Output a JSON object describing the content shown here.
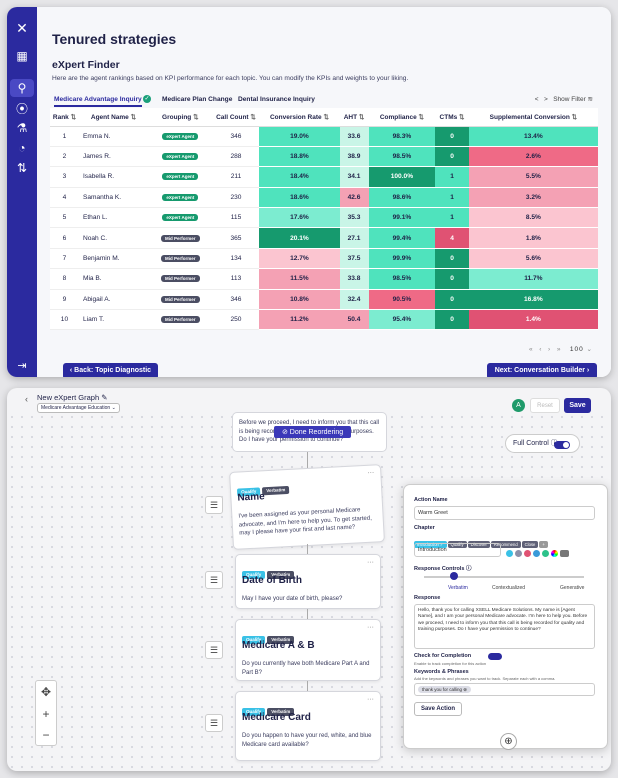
{
  "top": {
    "title": "Tenured strategies",
    "finder_title": "eXpert Finder",
    "description": "Here are the agent rankings based on KPI performance for each topic. You can modify the KPIs and weights to your liking.",
    "tabs": [
      "Medicare Advantage Inquiry",
      "Medicare Plan Change",
      "Dental Insurance Inquiry"
    ],
    "show_filter": "Show Filter",
    "columns": [
      "Rank",
      "Agent Name",
      "Grouping",
      "Call Count",
      "Conversion Rate",
      "AHT",
      "Compliance",
      "CTMs",
      "Supplemental Conversion"
    ],
    "rows": [
      [
        "1",
        "Emma N.",
        "eXpert Agent",
        "346",
        "19.0%",
        "33.6",
        "98.3%",
        "0",
        "13.4%"
      ],
      [
        "2",
        "James R.",
        "eXpert Agent",
        "288",
        "18.8%",
        "38.9",
        "98.5%",
        "0",
        "2.6%"
      ],
      [
        "3",
        "Isabella R.",
        "eXpert Agent",
        "211",
        "18.4%",
        "34.1",
        "100.0%",
        "1",
        "5.5%"
      ],
      [
        "4",
        "Samantha K.",
        "eXpert Agent",
        "230",
        "18.6%",
        "42.6",
        "98.6%",
        "1",
        "3.2%"
      ],
      [
        "5",
        "Ethan L.",
        "eXpert Agent",
        "115",
        "17.6%",
        "35.3",
        "99.1%",
        "1",
        "8.5%"
      ],
      [
        "6",
        "Noah C.",
        "Mid Performer",
        "365",
        "20.1%",
        "27.1",
        "99.4%",
        "4",
        "1.8%"
      ],
      [
        "7",
        "Benjamin M.",
        "Mid Performer",
        "134",
        "12.7%",
        "37.5",
        "99.9%",
        "0",
        "5.6%"
      ],
      [
        "8",
        "Mia B.",
        "Mid Performer",
        "113",
        "11.5%",
        "33.8",
        "98.5%",
        "0",
        "11.7%"
      ],
      [
        "9",
        "Abigail A.",
        "Mid Performer",
        "346",
        "10.8%",
        "32.4",
        "90.5%",
        "0",
        "16.8%"
      ],
      [
        "10",
        "Liam T.",
        "Mid Performer",
        "250",
        "11.2%",
        "50.4",
        "95.4%",
        "0",
        "1.4%"
      ]
    ],
    "colors": [
      [
        "#4fe3bd",
        "#c9f5e7",
        "#4fe3bd",
        "#169a6e",
        "#4fe3bd"
      ],
      [
        "#4fe3bd",
        "#c9f5e7",
        "#4fe3bd",
        "#169a6e",
        "#ef6a86"
      ],
      [
        "#4fe3bd",
        "#c9f5e7",
        "#169a6e",
        "#4fe3bd",
        "#f4a1b4"
      ],
      [
        "#4fe3bd",
        "#f4a1b4",
        "#4fe3bd",
        "#4fe3bd",
        "#f4a1b4"
      ],
      [
        "#7cecd0",
        "#c9f5e7",
        "#4fe3bd",
        "#4fe3bd",
        "#fbc5d0"
      ],
      [
        "#169a6e",
        "#c9f5e7",
        "#4fe3bd",
        "#e05273",
        "#fbc5d0"
      ],
      [
        "#fbc5d0",
        "#c9f5e7",
        "#4fe3bd",
        "#169a6e",
        "#fbc5d0"
      ],
      [
        "#f4a1b4",
        "#c9f5e7",
        "#4fe3bd",
        "#169a6e",
        "#7cecd0"
      ],
      [
        "#f4a1b4",
        "#c9f5e7",
        "#ef6a86",
        "#169a6e",
        "#169a6e"
      ],
      [
        "#f4a1b4",
        "#f4a1b4",
        "#7cecd0",
        "#169a6e",
        "#e05273"
      ]
    ],
    "pager_size": "100",
    "back_label": "‹  Back: Topic Diagnostic",
    "next_label": "Next: Conversation Builder  ›"
  },
  "bottom": {
    "graph_title": "New eXpert Graph ✎",
    "graph_select": "Medicare Advantage Education ⌄",
    "avatar": "A",
    "reset": "Reset",
    "save": "Save",
    "top_card_text": "Before we proceed, I need to inform you that this call is being recorded for quality and training purposes. Do I have your permission to continue?",
    "done_reordering": "⊘ Done Reordering",
    "full_control": "Full Control ⓘ",
    "tag_q": "Qualify",
    "tag_v": "Verbatim",
    "cards": [
      {
        "title": "Name",
        "body": "I've been assigned as your personal Medicare advocate, and I'm here to help you. To get started, may I please have your first and last name?"
      },
      {
        "title": "Date of Birth",
        "body": "May I have your date of birth, please?"
      },
      {
        "title": "Medicare A & B",
        "body": "Do you currently have both Medicare Part A and Part B?"
      },
      {
        "title": "Medicare Card",
        "body": "Do you happen to have your red, white, and blue Medicare card available?"
      }
    ],
    "panel": {
      "action_name_label": "Action Name",
      "action_name": "Warm Greet",
      "chapter_label": "Chapter",
      "chapters": [
        "Introduction ✓",
        "Qualify",
        "Discover",
        "Recommend",
        "Close",
        "+"
      ],
      "chapter_value": "Introduction",
      "response_controls": "Response Controls ⓘ",
      "slider_labels": [
        "Verbatim",
        "Contextualized",
        "Generative"
      ],
      "response_label": "Response",
      "response": "Hello, thank you for calling XSELL Medicare Solutions. My name is [Agent Name], and I am your personal Medicare advocate. I'm here to help you. Before we proceed, I need to inform you that this call is being recorded for quality and training purposes. Do I have your permission to continue?",
      "check_label": "Check for Completion",
      "check_desc": "Enable to track completion for this action",
      "kw_label": "Keywords & Phrases",
      "kw_desc": "Add the keywords and phrases you want to track. Separate each with a comma.",
      "kw_chip": "thank you for calling ⊗",
      "save_action": "Save Action"
    }
  }
}
